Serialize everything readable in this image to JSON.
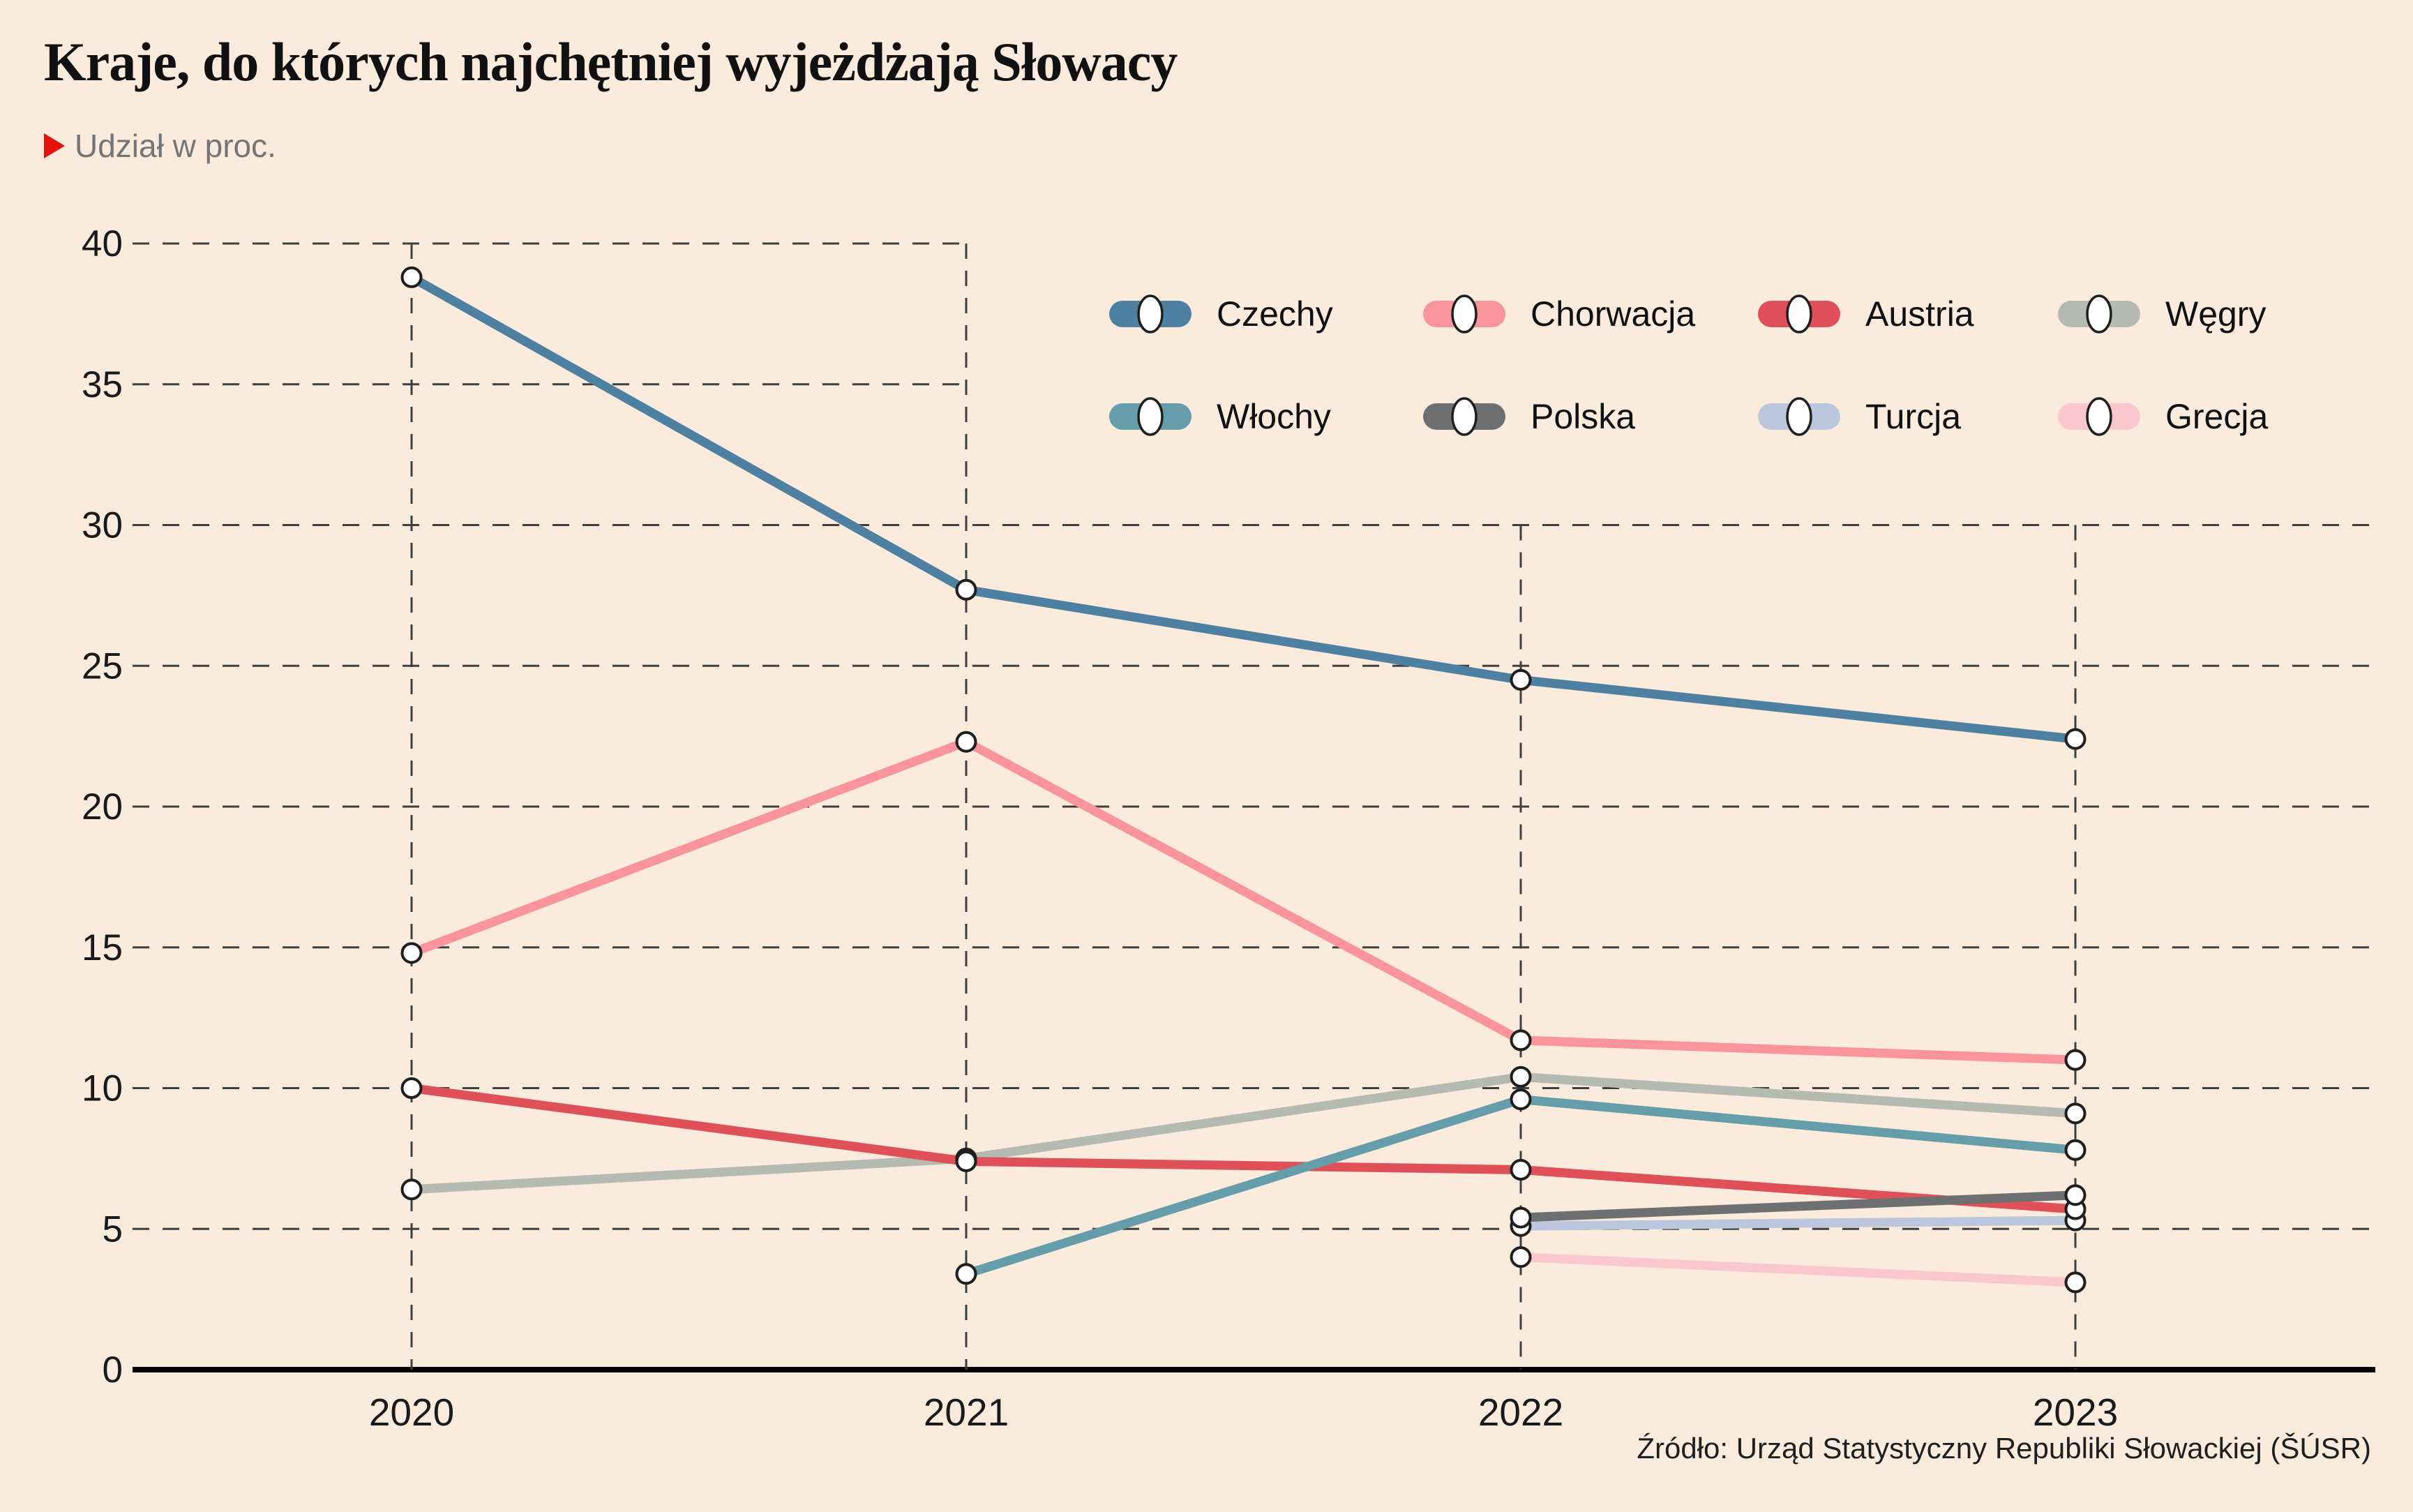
{
  "header": {
    "title": "Kraje, do których najchętniej wyjeżdżają Słowacy",
    "subtitle": "Udział w proc."
  },
  "footer": {
    "source": "Źródło: Urząd Statystyczny Republiki Słowackiej (ŠÚSR)"
  },
  "colors": {
    "background": "#FAEBDC",
    "grid": "#3F3F3F",
    "axis": "#000000",
    "tick_text": "#1A1A1A",
    "subtitle_text": "#757575",
    "accent_red": "#E3120B",
    "marker_fill": "#FFFFFF",
    "marker_stroke": "#1F1F1F"
  },
  "chart_data": {
    "type": "line",
    "title": "Kraje, do których najchętniej wyjeżdżają Słowacy",
    "subtitle": "Udział w proc.",
    "x": [
      "2020",
      "2021",
      "2022",
      "2023"
    ],
    "series": [
      {
        "name": "Czechy",
        "color": "#4E80A1",
        "values": [
          38.8,
          27.7,
          24.5,
          22.4
        ]
      },
      {
        "name": "Chorwacja",
        "color": "#F9949D",
        "values": [
          14.8,
          22.3,
          11.7,
          11.0
        ]
      },
      {
        "name": "Austria",
        "color": "#DF5058",
        "values": [
          10.0,
          7.4,
          7.1,
          5.7
        ]
      },
      {
        "name": "Węgry",
        "color": "#B5BAB2",
        "values": [
          6.4,
          7.5,
          10.4,
          9.1
        ]
      },
      {
        "name": "Włochy",
        "color": "#659EAA",
        "values": [
          null,
          3.4,
          9.6,
          7.8
        ]
      },
      {
        "name": "Polska",
        "color": "#6E6F71",
        "values": [
          null,
          null,
          5.4,
          6.2
        ]
      },
      {
        "name": "Turcja",
        "color": "#BBC7DD",
        "values": [
          null,
          null,
          5.1,
          5.3
        ]
      },
      {
        "name": "Grecja",
        "color": "#FAC7CC",
        "values": [
          null,
          null,
          4.0,
          3.1
        ]
      }
    ],
    "ylim": [
      0,
      40
    ],
    "yticks": [
      0,
      5,
      10,
      15,
      20,
      25,
      30,
      35,
      40
    ],
    "xlabel": "",
    "ylabel": "",
    "grid": "dashed",
    "legend_position": "top-right",
    "legend_rows": [
      [
        "Czechy",
        "Chorwacja",
        "Austria",
        "Węgry"
      ],
      [
        "Włochy",
        "Polska",
        "Turcja",
        "Grecja"
      ]
    ],
    "draw_order": [
      "Grecja",
      "Turcja",
      "Węgry",
      "Chorwacja",
      "Austria",
      "Włochy",
      "Polska",
      "Czechy"
    ]
  }
}
